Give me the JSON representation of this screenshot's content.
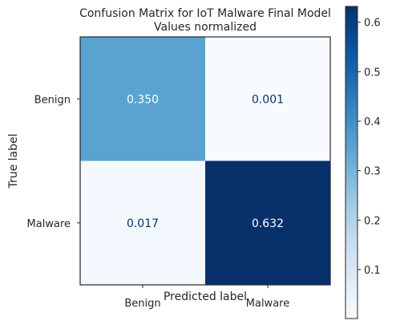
{
  "chart_data": {
    "type": "heatmap",
    "title": "Confusion Matrix for IoT Malware Final Model",
    "subtitle": "Values normalized",
    "xlabel": "Predicted label",
    "ylabel": "True label",
    "x_categories": [
      "Benign",
      "Malware"
    ],
    "y_categories": [
      "Benign",
      "Malware"
    ],
    "matrix": [
      [
        0.35,
        0.001
      ],
      [
        0.017,
        0.632
      ]
    ],
    "cell_labels": [
      [
        "0.350",
        "0.001"
      ],
      [
        "0.017",
        "0.632"
      ]
    ],
    "colormap": "Blues",
    "colorbar": {
      "min": 0.001,
      "max": 0.632,
      "ticks": [
        0.1,
        0.2,
        0.3,
        0.4,
        0.5,
        0.6
      ],
      "tick_labels": [
        "0.1",
        "0.2",
        "0.3",
        "0.4",
        "0.5",
        "0.6"
      ]
    },
    "grid": false
  }
}
